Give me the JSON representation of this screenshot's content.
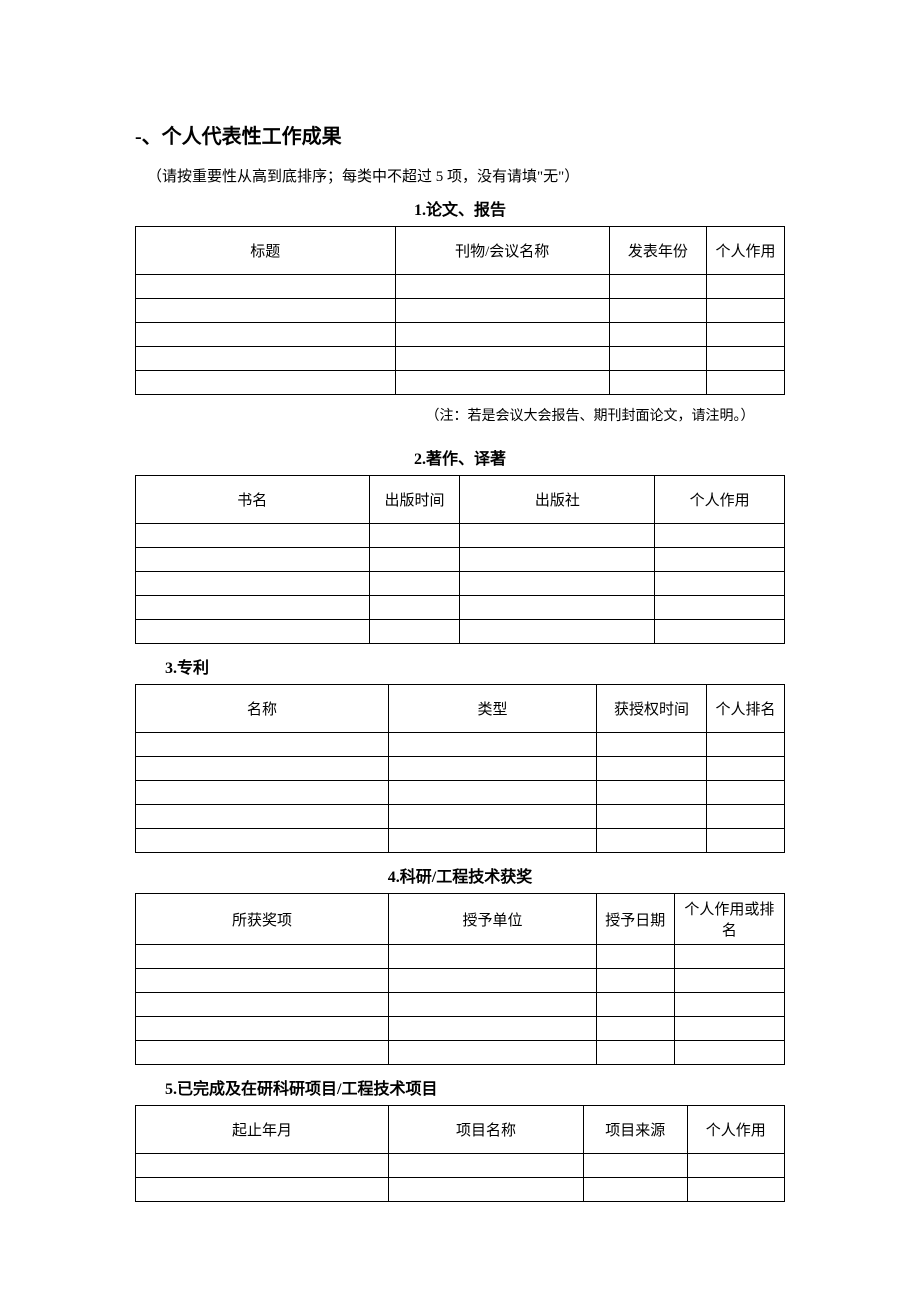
{
  "main_heading": "-、个人代表性工作成果",
  "instruction": "（请按重要性从高到底排序；每类中不超过 5 项，没有请填\"无\"）",
  "section1": {
    "number": "1",
    "title": ".论文、报告",
    "headers": [
      "标题",
      "刊物/会议名称",
      "发表年份",
      "个人作用"
    ],
    "rows": [
      [
        "",
        "",
        "",
        ""
      ],
      [
        "",
        "",
        "",
        ""
      ],
      [
        "",
        "",
        "",
        ""
      ],
      [
        "",
        "",
        "",
        ""
      ],
      [
        "",
        "",
        "",
        ""
      ]
    ],
    "note": "（注：若是会议大会报告、期刊封面论文，请注明。）"
  },
  "section2": {
    "number": "2.",
    "title": "著作、译著",
    "headers": [
      "书名",
      "出版时间",
      "出版社",
      "个人作用"
    ],
    "rows": [
      [
        "",
        "",
        "",
        ""
      ],
      [
        "",
        "",
        "",
        ""
      ],
      [
        "",
        "",
        "",
        ""
      ],
      [
        "",
        "",
        "",
        ""
      ],
      [
        "",
        "",
        "",
        ""
      ]
    ]
  },
  "section3": {
    "number": "3",
    "title": ".专利",
    "headers": [
      "名称",
      "类型",
      "获授权时间",
      "个人排名"
    ],
    "rows": [
      [
        "",
        "",
        "",
        ""
      ],
      [
        "",
        "",
        "",
        ""
      ],
      [
        "",
        "",
        "",
        ""
      ],
      [
        "",
        "",
        "",
        ""
      ],
      [
        "",
        "",
        "",
        ""
      ]
    ]
  },
  "section4": {
    "number": "4.",
    "title": "科研/工程技术获奖",
    "headers": [
      "所获奖项",
      "授予单位",
      "授予日期",
      "个人作用或排名"
    ],
    "rows": [
      [
        "",
        "",
        "",
        ""
      ],
      [
        "",
        "",
        "",
        ""
      ],
      [
        "",
        "",
        "",
        ""
      ],
      [
        "",
        "",
        "",
        ""
      ],
      [
        "",
        "",
        "",
        ""
      ]
    ]
  },
  "section5": {
    "number": "5.",
    "title": "已完成及在研科研项目/工程技术项目",
    "headers": [
      "起止年月",
      "项目名称",
      "项目来源",
      "个人作用"
    ],
    "rows": [
      [
        "",
        "",
        "",
        ""
      ],
      [
        "",
        "",
        "",
        ""
      ]
    ]
  }
}
